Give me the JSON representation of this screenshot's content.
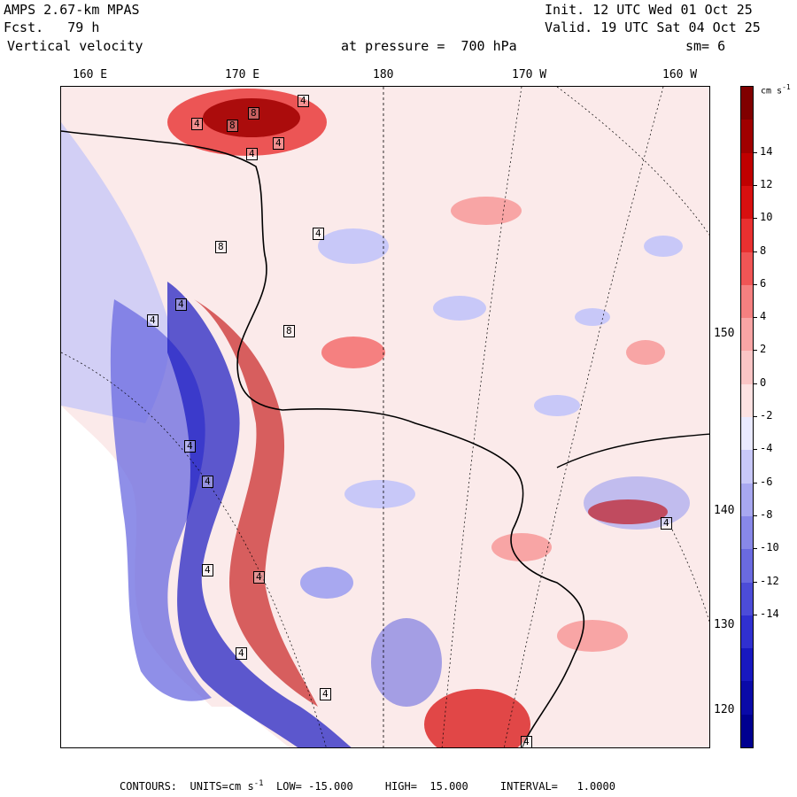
{
  "header": {
    "model": "AMPS 2.67-km MPAS",
    "fcst": "Fcst.   79 h",
    "field": "Vertical velocity",
    "level": "at pressure =  700 hPa",
    "init": "Init. 12 UTC Wed 01 Oct 25",
    "valid": "Valid. 19 UTC Sat 04 Oct 25",
    "smoothing": "sm= 6"
  },
  "axes": {
    "top_ticks": [
      "160 E",
      "170 E",
      "180",
      "170 W",
      "160 W"
    ],
    "right_ticks": [
      "150 W",
      "140 W",
      "130 W",
      "120 W"
    ]
  },
  "colorbar": {
    "units_label": "cm s",
    "units_exp": "-1",
    "labels": [
      "14",
      "12",
      "10",
      "8",
      "6",
      "4",
      "2",
      "0",
      "-2",
      "-4",
      "-6",
      "-8",
      "-10",
      "-12",
      "-14"
    ],
    "colors": [
      "#800000",
      "#a00000",
      "#c00000",
      "#d81010",
      "#e83030",
      "#f05555",
      "#f58080",
      "#f8a5a5",
      "#fac5c5",
      "#fde2e2",
      "#eaeaff",
      "#c8c8f8",
      "#a8a8f0",
      "#8888e8",
      "#6a6ae0",
      "#4c4cd8",
      "#3030d0",
      "#1818c0",
      "#0a0aa8",
      "#000090"
    ]
  },
  "map": {
    "contour_labels": [
      "4",
      "8",
      "8",
      "4",
      "4",
      "4",
      "8",
      "4",
      "4",
      "8",
      "4",
      "4",
      "4",
      "4",
      "4",
      "4",
      "4",
      "4",
      "4"
    ]
  },
  "footer": {
    "contours": "CONTOURS:  UNITS=cm s",
    "units_exp": "-1",
    "rest": "  LOW= -15.000     HIGH=  15.000     INTERVAL=   1.0000"
  }
}
